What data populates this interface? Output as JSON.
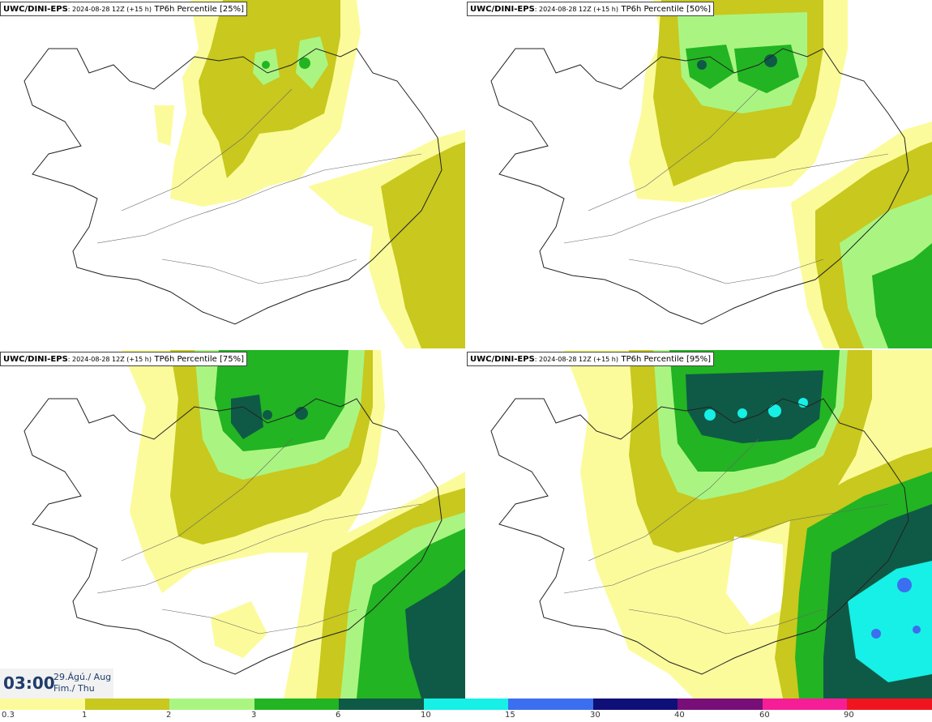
{
  "panels": [
    {
      "model": "UWC/DINI-EPS",
      "run": ": 2024-08-28 12Z (+15 h)",
      "product": "TP6h Percentile [25%]"
    },
    {
      "model": "UWC/DINI-EPS",
      "run": ": 2024-08-28 12Z (+15 h)",
      "product": "TP6h Percentile [50%]"
    },
    {
      "model": "UWC/DINI-EPS",
      "run": ": 2024-08-28 12Z (+15 h)",
      "product": "TP6h Percentile [75%]"
    },
    {
      "model": "UWC/DINI-EPS",
      "run": ": 2024-08-28 12Z (+15 h)",
      "product": "TP6h Percentile [95%]"
    }
  ],
  "valid_time": {
    "time": "03:00",
    "date_line1": "29.Ágú./ Aug",
    "date_line2": "Fim./ Thu"
  },
  "legend": {
    "labels": [
      "0.3",
      "1",
      "2",
      "3",
      "6",
      "10",
      "15",
      "30",
      "40",
      "60",
      "90"
    ],
    "colors": [
      "#fbfb9b",
      "#c8c81e",
      "#aaf582",
      "#22b422",
      "#0f5a46",
      "#16f0e6",
      "#3c6ef0",
      "#0f0f78",
      "#780f78",
      "#f51e96",
      "#f0141e"
    ]
  }
}
